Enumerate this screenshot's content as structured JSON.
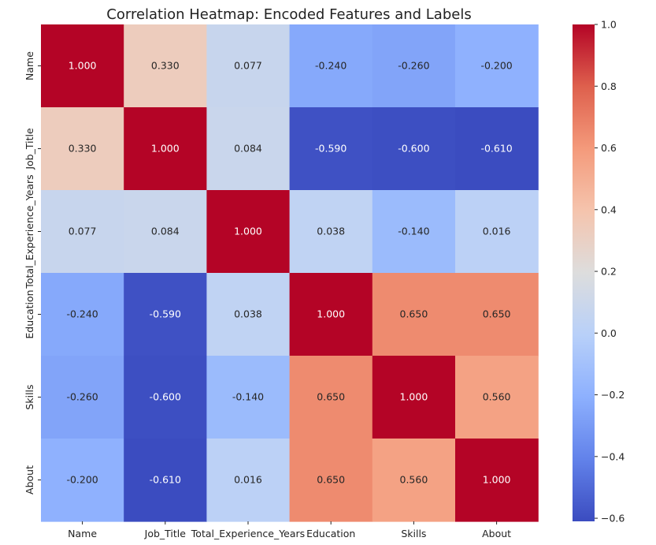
{
  "chart_data": {
    "type": "heatmap",
    "title": "Correlation Heatmap: Encoded Features and Labels",
    "xlabel": "",
    "ylabel": "",
    "x_categories": [
      "Name",
      "Job_Title",
      "Total_Experience_Years",
      "Education",
      "Skills",
      "About"
    ],
    "y_categories": [
      "Name",
      "Job_Title",
      "Total_Experience_Years",
      "Education",
      "Skills",
      "About"
    ],
    "values": [
      [
        1.0,
        0.33,
        0.077,
        -0.24,
        -0.26,
        -0.2
      ],
      [
        0.33,
        1.0,
        0.084,
        -0.59,
        -0.6,
        -0.61
      ],
      [
        0.077,
        0.084,
        1.0,
        0.038,
        -0.14,
        0.016
      ],
      [
        -0.24,
        -0.59,
        0.038,
        1.0,
        0.65,
        0.65
      ],
      [
        -0.26,
        -0.6,
        -0.14,
        0.65,
        1.0,
        0.56
      ],
      [
        -0.2,
        -0.61,
        0.016,
        0.65,
        0.56,
        1.0
      ]
    ],
    "cell_labels": [
      [
        "1.000",
        "0.330",
        "0.077",
        "-0.240",
        "-0.260",
        "-0.200"
      ],
      [
        "0.330",
        "1.000",
        "0.084",
        "-0.590",
        "-0.600",
        "-0.610"
      ],
      [
        "0.077",
        "0.084",
        "1.000",
        "0.038",
        "-0.140",
        "0.016"
      ],
      [
        "-0.240",
        "-0.590",
        "0.038",
        "1.000",
        "0.650",
        "0.650"
      ],
      [
        "-0.260",
        "-0.600",
        "-0.140",
        "0.650",
        "1.000",
        "0.560"
      ],
      [
        "-0.200",
        "-0.610",
        "0.016",
        "0.650",
        "0.560",
        "1.000"
      ]
    ],
    "colormap": "coolwarm",
    "vmin": -0.61,
    "vmax": 1.0,
    "colorbar_ticks": [
      1.0,
      0.8,
      0.6,
      0.4,
      0.2,
      0.0,
      -0.2,
      -0.4,
      -0.6
    ],
    "colorbar_tick_labels": [
      "1.0",
      "0.8",
      "0.6",
      "0.4",
      "0.2",
      "0.0",
      "−0.2",
      "−0.4",
      "−0.6"
    ],
    "legend_position": "right"
  }
}
